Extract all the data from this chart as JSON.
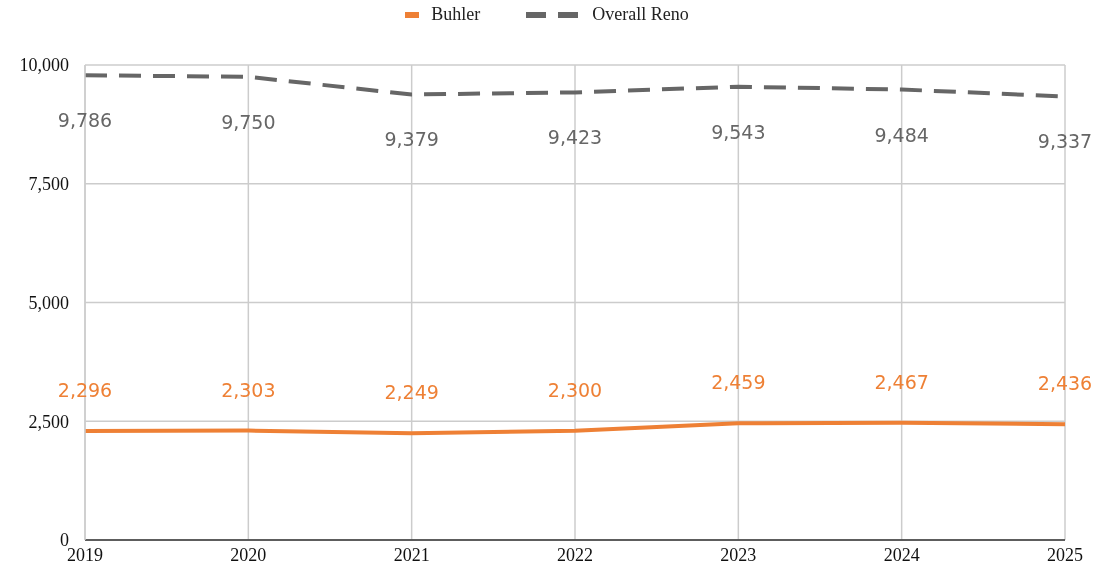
{
  "chart_data": {
    "type": "line",
    "categories": [
      "2019",
      "2020",
      "2021",
      "2022",
      "2023",
      "2024",
      "2025"
    ],
    "series": [
      {
        "name": "Buhler",
        "color": "#ee8035",
        "line_style": "solid",
        "values": [
          2296,
          2303,
          2249,
          2300,
          2459,
          2467,
          2436
        ],
        "value_labels": [
          "2,296",
          "2,303",
          "2,249",
          "2,300",
          "2,459",
          "2,467",
          "2,436"
        ]
      },
      {
        "name": "Overall Reno",
        "color": "#666666",
        "line_style": "dashed",
        "values": [
          9786,
          9750,
          9379,
          9423,
          9543,
          9484,
          9337
        ],
        "value_labels": [
          "9,786",
          "9,750",
          "9,379",
          "9,423",
          "9,543",
          "9,484",
          "9,337"
        ]
      }
    ],
    "ylim": [
      0,
      10000
    ],
    "yticks": [
      0,
      {
        "value": 2500,
        "label": "2,500"
      },
      {
        "value": 5000,
        "label": "5,000"
      },
      {
        "value": 7500,
        "label": "7,500"
      },
      {
        "value": 10000,
        "label": "10,000"
      }
    ],
    "grid": true,
    "legend": "top",
    "marker": "none"
  }
}
